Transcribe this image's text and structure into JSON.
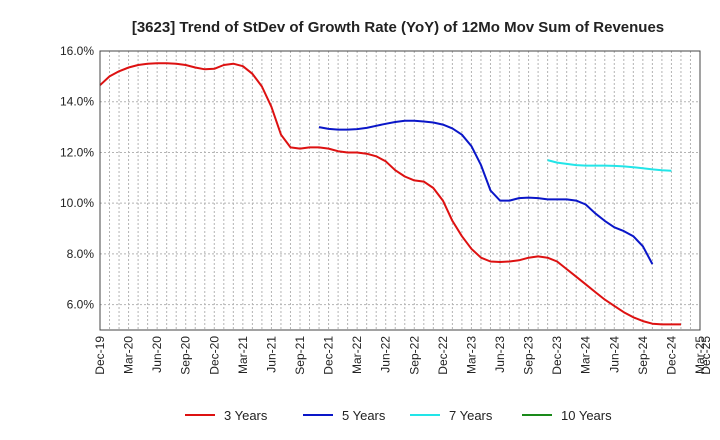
{
  "chart_data": {
    "type": "line",
    "title": "[3623]  Trend of StDev of Growth Rate (YoY) of 12Mo Mov Sum of Revenues",
    "xlabel": "",
    "ylabel": "",
    "ylim": [
      5.0,
      16.0
    ],
    "y_ticks": [
      6.0,
      8.0,
      10.0,
      12.0,
      14.0,
      16.0
    ],
    "y_tick_labels": [
      "6.0%",
      "8.0%",
      "10.0%",
      "12.0%",
      "14.0%",
      "16.0%"
    ],
    "x_tick_labels": [
      "Dec-19",
      "Mar-20",
      "Jun-20",
      "Sep-20",
      "Dec-20",
      "Mar-21",
      "Jun-21",
      "Sep-21",
      "Dec-21",
      "Mar-22",
      "Jun-22",
      "Sep-22",
      "Dec-22",
      "Mar-23",
      "Jun-23",
      "Sep-23",
      "Dec-23",
      "Mar-24",
      "Jun-24",
      "Sep-24",
      "Dec-24",
      "Mar-25",
      "Dec-25"
    ],
    "x_start": "Dec-19",
    "x_end": "Mar-25",
    "grid": true,
    "legend_position": "bottom",
    "series": [
      {
        "name": "3 Years",
        "color": "#dd1111",
        "start": "Dec-19",
        "values": [
          14.65,
          15.0,
          15.2,
          15.35,
          15.45,
          15.5,
          15.52,
          15.52,
          15.5,
          15.45,
          15.35,
          15.28,
          15.3,
          15.45,
          15.5,
          15.4,
          15.1,
          14.6,
          13.8,
          12.7,
          12.2,
          12.15,
          12.2,
          12.2,
          12.15,
          12.05,
          12.0,
          12.0,
          11.95,
          11.85,
          11.65,
          11.3,
          11.05,
          10.9,
          10.85,
          10.6,
          10.1,
          9.3,
          8.7,
          8.2,
          7.85,
          7.7,
          7.68,
          7.7,
          7.75,
          7.85,
          7.9,
          7.85,
          7.7,
          7.4,
          7.1,
          6.8,
          6.5,
          6.2,
          5.95,
          5.7,
          5.5,
          5.35,
          5.25,
          5.22,
          5.22,
          5.22
        ]
      },
      {
        "name": "5 Years",
        "color": "#0a16c8",
        "start": "Nov-21",
        "values": [
          13.0,
          12.93,
          12.9,
          12.9,
          12.92,
          12.97,
          13.05,
          13.13,
          13.2,
          13.25,
          13.25,
          13.22,
          13.18,
          13.1,
          12.95,
          12.7,
          12.25,
          11.5,
          10.5,
          10.1,
          10.1,
          10.2,
          10.22,
          10.2,
          10.15,
          10.15,
          10.15,
          10.1,
          9.95,
          9.6,
          9.3,
          9.05,
          8.9,
          8.7,
          8.3,
          7.6
        ]
      },
      {
        "name": "7 Years",
        "color": "#22e5e8",
        "start": "Nov-23",
        "values": [
          11.7,
          11.6,
          11.55,
          11.5,
          11.48,
          11.48,
          11.48,
          11.47,
          11.45,
          11.42,
          11.38,
          11.33,
          11.3,
          11.28
        ]
      },
      {
        "name": "10 Years",
        "color": "#1a8a1a",
        "start": "",
        "values": []
      }
    ]
  }
}
